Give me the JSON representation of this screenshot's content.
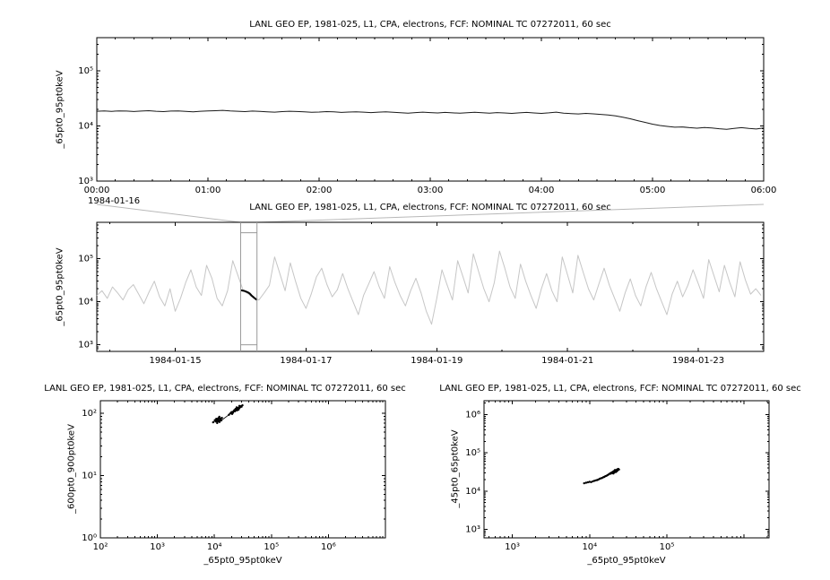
{
  "chart_data": [
    {
      "id": "timeseries-zoom",
      "type": "line",
      "title": "LANL GEO EP, 1981-025, L1, CPA, electrons, FCF: NOMINAL TC 07272011, 60 sec",
      "ylabel": "_65pt0_95pt0keV",
      "date_label": "1984-01-16",
      "xscale": "linear",
      "xlim": [
        0,
        6
      ],
      "ylim": [
        1000,
        400000
      ],
      "x_minor": 0.166667,
      "xticks": [
        {
          "v": 0,
          "label": "00:00"
        },
        {
          "v": 1,
          "label": "01:00"
        },
        {
          "v": 2,
          "label": "02:00"
        },
        {
          "v": 3,
          "label": "03:00"
        },
        {
          "v": 4,
          "label": "04:00"
        },
        {
          "v": 5,
          "label": "05:00"
        },
        {
          "v": 6,
          "label": "06:00"
        }
      ],
      "yticks": [
        {
          "v": 100000,
          "label": "10⁵"
        },
        {
          "v": 10000,
          "label": "10⁴"
        },
        {
          "v": 1000,
          "label": "10³"
        }
      ],
      "color": "#1a1a1a",
      "x_start": 0,
      "x_step": 0.0666667,
      "y": [
        18500,
        18700,
        18400,
        18800,
        18600,
        18300,
        18600,
        18900,
        18500,
        18200,
        18600,
        18800,
        18400,
        18100,
        18500,
        18700,
        18900,
        19200,
        18800,
        18500,
        18200,
        18600,
        18400,
        18100,
        17800,
        18200,
        18500,
        18300,
        18000,
        17700,
        17900,
        18200,
        18000,
        17600,
        17900,
        18100,
        17800,
        17500,
        17800,
        18000,
        17700,
        17400,
        17100,
        17500,
        17800,
        17500,
        17200,
        17600,
        17300,
        17000,
        17400,
        17700,
        17400,
        17100,
        17500,
        17200,
        16900,
        17300,
        17600,
        17200,
        16900,
        17300,
        17800,
        17100,
        16800,
        16500,
        16900,
        16600,
        16200,
        15800,
        15200,
        14400,
        13500,
        12500,
        11600,
        10800,
        10200,
        9800,
        9500,
        9600,
        9300,
        9100,
        9400,
        9200,
        8900,
        8700,
        9000,
        9300,
        9000,
        8800,
        9200
      ]
    },
    {
      "id": "context-overview",
      "type": "line",
      "title": "LANL GEO EP, 1981-025, L1, CPA, electrons, FCF: NOMINAL TC 07272011, 60 sec",
      "ylabel": "_65pt0_95pt0keV",
      "xscale": "linear",
      "xlim": [
        13.8,
        24.0
      ],
      "ylim": [
        700,
        700000
      ],
      "x_minor": 1.0,
      "xticks": [
        {
          "v": 15,
          "label": "1984-01-15"
        },
        {
          "v": 17,
          "label": "1984-01-17"
        },
        {
          "v": 19,
          "label": "1984-01-19"
        },
        {
          "v": 21,
          "label": "1984-01-21"
        },
        {
          "v": 23,
          "label": "1984-01-23"
        }
      ],
      "yticks": [
        {
          "v": 100000,
          "label": "10⁵"
        },
        {
          "v": 10000,
          "label": "10⁴"
        },
        {
          "v": 1000,
          "label": "10³"
        }
      ],
      "color": "#c6c6c6",
      "x_start": 13.8,
      "x_step": 0.08,
      "y": [
        14000,
        18000,
        12000,
        22000,
        16000,
        11000,
        19000,
        25000,
        15000,
        9000,
        17000,
        30000,
        13000,
        8000,
        20000,
        6000,
        12000,
        28000,
        55000,
        22000,
        14000,
        70000,
        35000,
        12000,
        8000,
        18000,
        90000,
        40000,
        18000,
        15000,
        12000,
        11000,
        16000,
        24000,
        110000,
        45000,
        18000,
        80000,
        30000,
        12000,
        7000,
        15000,
        38000,
        60000,
        25000,
        13000,
        19000,
        45000,
        20000,
        10000,
        5000,
        14000,
        26000,
        50000,
        22000,
        12000,
        65000,
        28000,
        14000,
        8000,
        18000,
        35000,
        16000,
        6000,
        3000,
        12000,
        55000,
        24000,
        11000,
        90000,
        38000,
        16000,
        130000,
        50000,
        20000,
        10000,
        28000,
        150000,
        60000,
        22000,
        12000,
        75000,
        30000,
        14000,
        7000,
        20000,
        45000,
        18000,
        10000,
        110000,
        42000,
        16000,
        120000,
        48000,
        20000,
        11000,
        26000,
        60000,
        24000,
        12000,
        6000,
        16000,
        34000,
        14000,
        8000,
        22000,
        48000,
        20000,
        10000,
        5000,
        15000,
        30000,
        13000,
        24000,
        55000,
        26000,
        12000,
        95000,
        40000,
        17000,
        70000,
        28000,
        13000,
        85000,
        32000,
        15000,
        20000,
        14000
      ],
      "highlight": {
        "color": "#000000",
        "x_start": 16.0,
        "x_step": 0.0278,
        "y": [
          18500,
          18200,
          17800,
          17200,
          16500,
          15500,
          14000,
          12800,
          11800,
          11000
        ]
      },
      "selection": {
        "x0": 16.0,
        "x1": 16.25
      }
    },
    {
      "id": "scatter-left",
      "type": "scatter",
      "title": "LANL GEO EP, 1981-025, L1, CPA, electrons, FCF: NOMINAL TC 07272011, 60 sec",
      "xlabel": "_65pt0_95pt0keV",
      "ylabel": "_600pt0_900pt0keV",
      "xscale": "log",
      "xlim": [
        100,
        10000000
      ],
      "ylim": [
        1,
        160
      ],
      "xticks": [
        {
          "v": 100,
          "label": "10²"
        },
        {
          "v": 1000,
          "label": "10³"
        },
        {
          "v": 10000,
          "label": "10⁴"
        },
        {
          "v": 100000,
          "label": "10⁵"
        },
        {
          "v": 1000000,
          "label": "10⁶"
        }
      ],
      "yticks": [
        {
          "v": 100,
          "label": "10²"
        },
        {
          "v": 10,
          "label": "10¹"
        },
        {
          "v": 1,
          "label": "10⁰"
        }
      ],
      "color": "#000000",
      "points": [
        [
          9500,
          72
        ],
        [
          10200,
          78
        ],
        [
          11000,
          75
        ],
        [
          10800,
          82
        ],
        [
          11500,
          80
        ],
        [
          12000,
          85
        ],
        [
          11200,
          70
        ],
        [
          12500,
          78
        ],
        [
          13000,
          82
        ],
        [
          12200,
          88
        ],
        [
          10500,
          74
        ],
        [
          11800,
          76
        ],
        [
          12800,
          80
        ],
        [
          13500,
          85
        ],
        [
          10900,
          79
        ],
        [
          11600,
          83
        ],
        [
          12300,
          73
        ],
        [
          13200,
          77
        ],
        [
          18000,
          95
        ],
        [
          19000,
          100
        ],
        [
          20000,
          105
        ],
        [
          21000,
          102
        ],
        [
          22000,
          110
        ],
        [
          23000,
          108
        ],
        [
          24000,
          115
        ],
        [
          25000,
          112
        ],
        [
          26000,
          118
        ],
        [
          27000,
          120
        ],
        [
          24500,
          125
        ],
        [
          23500,
          118
        ],
        [
          22500,
          113
        ],
        [
          25500,
          122
        ],
        [
          28000,
          125
        ],
        [
          29000,
          130
        ],
        [
          30000,
          128
        ],
        [
          26500,
          115
        ],
        [
          21500,
          107
        ],
        [
          20500,
          98
        ],
        [
          27500,
          132
        ],
        [
          31000,
          135
        ]
      ]
    },
    {
      "id": "scatter-right",
      "type": "scatter",
      "title": "LANL GEO EP, 1981-025, L1, CPA, electrons, FCF: NOMINAL TC 07272011, 60 sec",
      "xlabel": "_65pt0_95pt0keV",
      "ylabel": "_45pt0_65pt0keV",
      "xscale": "log",
      "xlim": [
        430,
        2100000
      ],
      "ylim": [
        600,
        2300000
      ],
      "xticks": [
        {
          "v": 1000,
          "label": "10³"
        },
        {
          "v": 10000,
          "label": "10⁴"
        },
        {
          "v": 100000,
          "label": "10⁵"
        }
      ],
      "yticks": [
        {
          "v": 1000000,
          "label": "10⁶"
        },
        {
          "v": 100000,
          "label": "10⁵"
        },
        {
          "v": 10000,
          "label": "10⁴"
        },
        {
          "v": 1000,
          "label": "10³"
        }
      ],
      "color": "#000000",
      "points": [
        [
          8500,
          16000
        ],
        [
          9000,
          16500
        ],
        [
          9500,
          17000
        ],
        [
          10000,
          17500
        ],
        [
          10500,
          17200
        ],
        [
          11000,
          18000
        ],
        [
          11500,
          18500
        ],
        [
          12000,
          19000
        ],
        [
          12500,
          19500
        ],
        [
          13000,
          20000
        ],
        [
          13500,
          21000
        ],
        [
          14000,
          21500
        ],
        [
          14500,
          22000
        ],
        [
          15000,
          23000
        ],
        [
          15500,
          23500
        ],
        [
          16000,
          24500
        ],
        [
          16500,
          25000
        ],
        [
          17000,
          26000
        ],
        [
          17500,
          27000
        ],
        [
          18000,
          28000
        ],
        [
          18500,
          29000
        ],
        [
          19000,
          30000
        ],
        [
          19500,
          31000
        ],
        [
          20000,
          32000
        ],
        [
          20500,
          33000
        ],
        [
          21000,
          34000
        ],
        [
          21500,
          33500
        ],
        [
          22000,
          35000
        ],
        [
          22500,
          36000
        ],
        [
          23000,
          34500
        ],
        [
          21800,
          31500
        ],
        [
          20800,
          30500
        ],
        [
          19800,
          29500
        ],
        [
          18800,
          28500
        ],
        [
          22800,
          37000
        ],
        [
          23500,
          38000
        ],
        [
          24000,
          36500
        ],
        [
          22300,
          32500
        ],
        [
          21300,
          35500
        ],
        [
          20300,
          28800
        ]
      ]
    }
  ]
}
